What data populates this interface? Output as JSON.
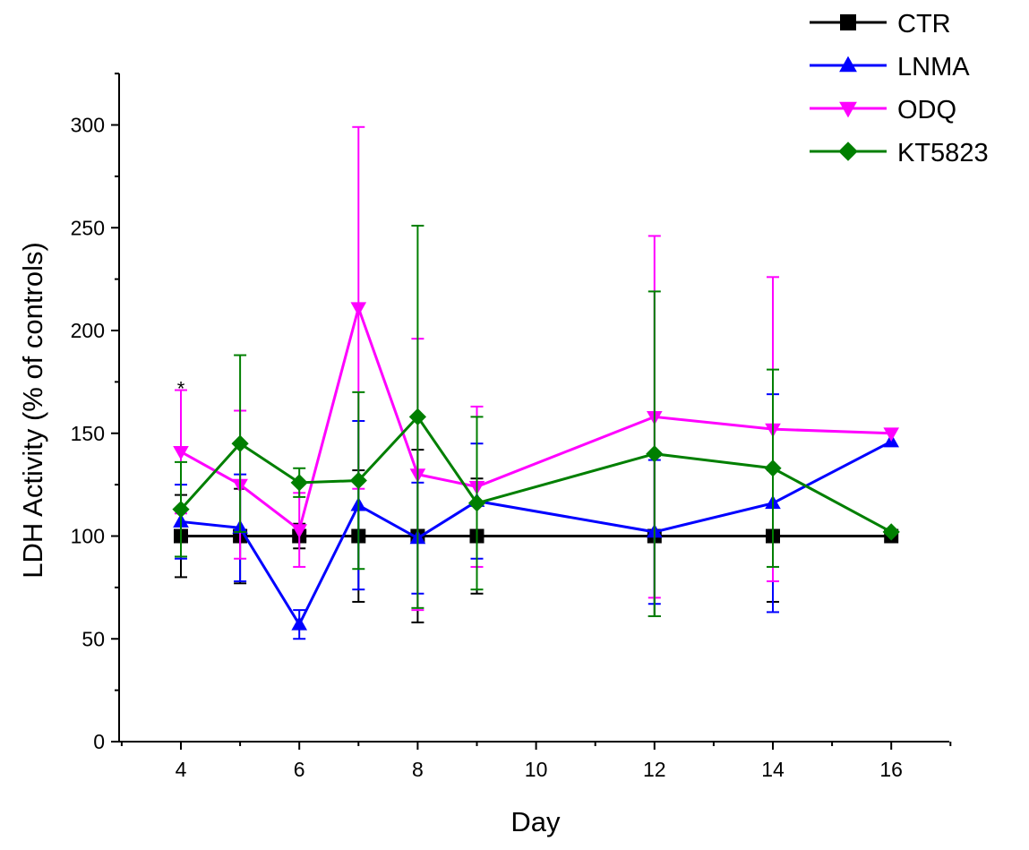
{
  "chart_data": {
    "type": "line",
    "title": "",
    "xlabel": "Day",
    "ylabel": "LDH Activity (% of controls)",
    "xlim": [
      3,
      17
    ],
    "ylim": [
      0,
      325
    ],
    "x_ticks": [
      4,
      6,
      8,
      10,
      12,
      14,
      16
    ],
    "y_ticks": [
      0,
      50,
      100,
      150,
      200,
      250,
      300
    ],
    "x_tick_labels": [
      "4",
      "6",
      "8",
      "10",
      "12",
      "14",
      "16"
    ],
    "y_tick_labels": [
      "0",
      "50",
      "100",
      "150",
      "200",
      "250",
      "300"
    ],
    "grid": false,
    "legend_position": "top-right",
    "series": [
      {
        "name": "CTR",
        "color": "#000000",
        "marker": "square",
        "x": [
          4,
          5,
          6,
          7,
          8,
          9,
          12,
          14,
          16
        ],
        "y": [
          100,
          100,
          100,
          100,
          100,
          100,
          100,
          100,
          100
        ],
        "err": [
          20,
          23,
          6,
          32,
          42,
          28,
          39,
          32,
          0
        ]
      },
      {
        "name": "LNMA",
        "color": "#0000ff",
        "marker": "triangle-up",
        "x": [
          4,
          5,
          6,
          7,
          8,
          9,
          12,
          14,
          16
        ],
        "y": [
          107,
          104,
          57,
          115,
          99,
          117,
          102,
          116,
          146
        ],
        "err": [
          18,
          26,
          7,
          41,
          27,
          28,
          35,
          53,
          0
        ]
      },
      {
        "name": "ODQ",
        "color": "#ff00ff",
        "marker": "triangle-down",
        "x": [
          4,
          5,
          6,
          7,
          8,
          9,
          12,
          14,
          16
        ],
        "y": [
          141,
          125,
          103,
          211,
          130,
          124,
          158,
          152,
          150
        ],
        "err": [
          30,
          36,
          18,
          88,
          66,
          39,
          88,
          74,
          0
        ]
      },
      {
        "name": "KT5823",
        "color": "#007f00",
        "marker": "diamond",
        "x": [
          4,
          5,
          6,
          7,
          8,
          9,
          12,
          14,
          16
        ],
        "y": [
          113,
          145,
          126,
          127,
          158,
          116,
          140,
          133,
          102
        ],
        "err": [
          23,
          43,
          7,
          43,
          93,
          42,
          79,
          48,
          0
        ]
      }
    ],
    "annotations": [
      {
        "text": "*",
        "x": 4,
        "y": 172
      }
    ]
  }
}
